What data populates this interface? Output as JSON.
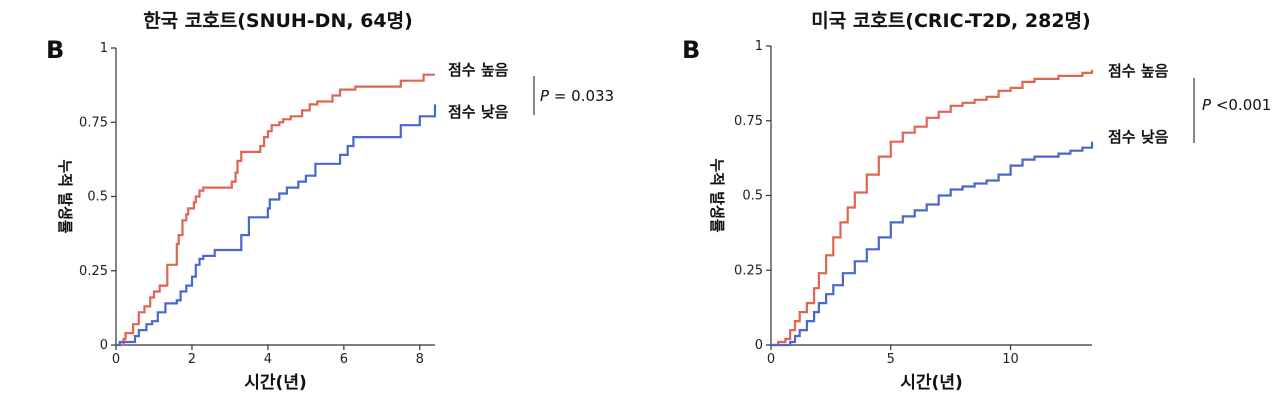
{
  "chart_data": [
    {
      "type": "line",
      "panel_letter": "B",
      "title": "한국 코호트(SNUH-DN, 64명)",
      "xlabel": "시간(년)",
      "ylabel": "누적 발생률",
      "xlim": [
        0,
        8.4
      ],
      "ylim": [
        0,
        1
      ],
      "x_ticks": [
        0,
        2,
        4,
        6,
        8
      ],
      "y_ticks": [
        0,
        0.25,
        0.5,
        0.75,
        1
      ],
      "y_tick_labels": [
        "0",
        "0.25",
        "0.5",
        "0.75",
        "1"
      ],
      "step": true,
      "grid": false,
      "p_value_label": "P",
      "p_value_text": " = 0.033",
      "series": [
        {
          "name": "점수 높음",
          "color": "#e06550",
          "x": [
            0,
            0.2,
            0.25,
            0.45,
            0.6,
            0.75,
            0.9,
            1.0,
            1.15,
            1.35,
            1.6,
            1.65,
            1.75,
            1.85,
            1.9,
            2.05,
            2.1,
            2.2,
            2.3,
            2.5,
            2.6,
            2.7,
            3.05,
            3.15,
            3.2,
            3.3,
            3.35,
            3.45,
            3.5,
            3.6,
            3.7,
            3.8,
            3.9,
            4.0,
            4.1,
            4.3,
            4.4,
            4.6,
            4.9,
            5.1,
            5.3,
            5.6,
            5.7,
            5.9,
            6.05,
            6.3,
            7.0,
            7.5,
            7.8,
            8.1,
            8.4
          ],
          "y": [
            0,
            0.02,
            0.04,
            0.07,
            0.11,
            0.13,
            0.16,
            0.18,
            0.2,
            0.27,
            0.34,
            0.37,
            0.42,
            0.44,
            0.46,
            0.48,
            0.5,
            0.52,
            0.53,
            0.53,
            0.53,
            0.53,
            0.55,
            0.58,
            0.62,
            0.65,
            0.65,
            0.65,
            0.65,
            0.65,
            0.65,
            0.67,
            0.7,
            0.72,
            0.74,
            0.75,
            0.76,
            0.77,
            0.79,
            0.81,
            0.82,
            0.82,
            0.84,
            0.86,
            0.86,
            0.87,
            0.87,
            0.89,
            0.89,
            0.91,
            0.91
          ]
        },
        {
          "name": "점수 낮음",
          "color": "#4a67cc",
          "x": [
            0,
            0.1,
            0.3,
            0.5,
            0.6,
            0.8,
            0.95,
            1.1,
            1.3,
            1.6,
            1.7,
            1.85,
            2.0,
            2.1,
            2.2,
            2.3,
            2.6,
            2.8,
            3.0,
            3.3,
            3.5,
            3.7,
            3.85,
            4.0,
            4.05,
            4.3,
            4.5,
            4.8,
            5.0,
            5.25,
            5.5,
            5.7,
            5.9,
            6.1,
            6.25,
            6.6,
            7.0,
            7.5,
            8.0,
            8.4
          ],
          "y": [
            0,
            0.01,
            0.01,
            0.03,
            0.05,
            0.07,
            0.08,
            0.11,
            0.14,
            0.15,
            0.18,
            0.2,
            0.23,
            0.27,
            0.29,
            0.3,
            0.32,
            0.32,
            0.32,
            0.37,
            0.43,
            0.43,
            0.43,
            0.46,
            0.49,
            0.51,
            0.53,
            0.55,
            0.57,
            0.61,
            0.61,
            0.61,
            0.64,
            0.67,
            0.7,
            0.7,
            0.7,
            0.74,
            0.77,
            0.81
          ]
        }
      ]
    },
    {
      "type": "line",
      "panel_letter": "B",
      "title": "미국 코호트(CRIC-T2D, 282명)",
      "xlabel": "시간(년)",
      "ylabel": "누적 발생률",
      "xlim": [
        0,
        13.4
      ],
      "ylim": [
        0,
        1
      ],
      "x_ticks": [
        0,
        5,
        10
      ],
      "y_ticks": [
        0,
        0.25,
        0.5,
        0.75,
        1
      ],
      "y_tick_labels": [
        "0",
        "0.25",
        "0.5",
        "0.75",
        "1"
      ],
      "step": true,
      "grid": false,
      "p_value_label": "P",
      "p_value_text": " <0.001",
      "series": [
        {
          "name": "점수 높음",
          "color": "#e06550",
          "x": [
            0,
            0.3,
            0.6,
            0.8,
            1.0,
            1.2,
            1.5,
            1.8,
            2.0,
            2.3,
            2.6,
            2.9,
            3.2,
            3.5,
            4.0,
            4.5,
            5.0,
            5.5,
            6.0,
            6.5,
            7.0,
            7.5,
            8.0,
            8.5,
            9.0,
            9.5,
            10.0,
            10.5,
            11.0,
            11.5,
            12.0,
            12.5,
            13.0,
            13.4
          ],
          "y": [
            0,
            0.01,
            0.02,
            0.05,
            0.08,
            0.11,
            0.14,
            0.19,
            0.24,
            0.3,
            0.36,
            0.41,
            0.46,
            0.51,
            0.57,
            0.63,
            0.68,
            0.71,
            0.73,
            0.76,
            0.78,
            0.8,
            0.81,
            0.82,
            0.83,
            0.85,
            0.86,
            0.88,
            0.89,
            0.89,
            0.9,
            0.9,
            0.91,
            0.92
          ]
        },
        {
          "name": "점수 낮음",
          "color": "#4a67cc",
          "x": [
            0,
            0.5,
            0.8,
            1.0,
            1.2,
            1.5,
            1.8,
            2.0,
            2.3,
            2.6,
            3.0,
            3.5,
            4.0,
            4.5,
            5.0,
            5.5,
            6.0,
            6.5,
            7.0,
            7.5,
            8.0,
            8.5,
            9.0,
            9.5,
            10.0,
            10.5,
            11.0,
            11.5,
            12.0,
            12.5,
            13.0,
            13.4
          ],
          "y": [
            0,
            0.0,
            0.01,
            0.03,
            0.05,
            0.08,
            0.11,
            0.14,
            0.17,
            0.2,
            0.24,
            0.28,
            0.32,
            0.36,
            0.41,
            0.43,
            0.45,
            0.47,
            0.5,
            0.52,
            0.53,
            0.54,
            0.55,
            0.57,
            0.6,
            0.62,
            0.63,
            0.63,
            0.64,
            0.65,
            0.66,
            0.68
          ]
        }
      ]
    }
  ]
}
